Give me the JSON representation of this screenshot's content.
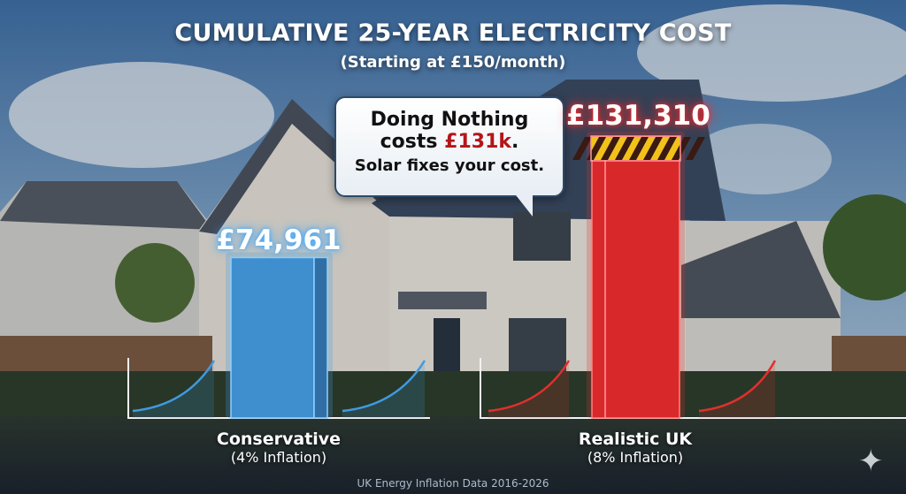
{
  "header": {
    "title": "CUMULATIVE 25-YEAR ELECTRICITY COST",
    "subtitle": "(Starting at £150/month)"
  },
  "callout": {
    "line1": "Doing Nothing",
    "line2_prefix": "costs ",
    "line2_highlight": "£131k",
    "line2_suffix": ".",
    "line3": "Solar fixes your cost."
  },
  "chart_data": {
    "type": "bar",
    "title": "CUMULATIVE 25-YEAR ELECTRICITY COST",
    "subtitle": "(Starting at £150/month)",
    "categories": [
      "Conservative",
      "Realistic UK"
    ],
    "category_notes": [
      "(4% Inflation)",
      "(8% Inflation)"
    ],
    "values": [
      74961,
      131310
    ],
    "value_labels": [
      "£74,961",
      "£131,310"
    ],
    "colors": [
      "#3f9ae0",
      "#e0302c"
    ],
    "ylim": [
      0,
      131310
    ],
    "grid": false,
    "legend": "none"
  },
  "footer": {
    "source": "UK Energy Inflation Data 2016-2026"
  },
  "icons": {
    "watermark": "sparkle-icon"
  }
}
